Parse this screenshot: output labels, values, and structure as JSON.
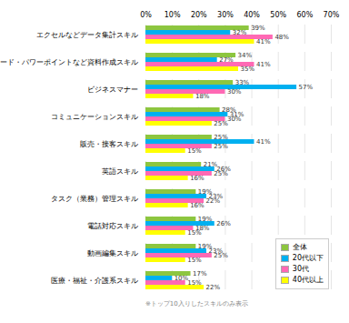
{
  "chart_data": {
    "type": "bar",
    "orientation": "horizontal",
    "categories": [
      "エクセルなどデータ集計スキル",
      "ワード・パワーポイントなど資料作成スキル",
      "ビジネスマナー",
      "コミュニケーションスキル",
      "販売・接客スキル",
      "英語スキル",
      "タスク（業務）管理スキル",
      "電話対応スキル",
      "動画編集スキル",
      "医療・福祉・介護系スキル"
    ],
    "series": [
      {
        "name": "全体",
        "color": "#8dc63f",
        "values": [
          39,
          34,
          33,
          28,
          25,
          21,
          19,
          19,
          19,
          17
        ],
        "value_labels": [
          "39%",
          "34%",
          "33%",
          "28%",
          "25%",
          "21%",
          "19%",
          "19%",
          "19%",
          "17%"
        ]
      },
      {
        "name": "20代以下",
        "color": "#00b0f0",
        "values": [
          32,
          27,
          57,
          31,
          41,
          26,
          23,
          26,
          23,
          10
        ],
        "value_labels": [
          "32%",
          "27%",
          "57%",
          "31%",
          "41%",
          "26%",
          "23%",
          "26%",
          "23%",
          "10%"
        ]
      },
      {
        "name": "30代",
        "color": "#ff69b4",
        "values": [
          48,
          41,
          30,
          30,
          25,
          25,
          22,
          18,
          25,
          15
        ],
        "value_labels": [
          "48%",
          "41%",
          "30%",
          "30%",
          "25%",
          "25%",
          "22%",
          "18%",
          "25%",
          "15%"
        ]
      },
      {
        "name": "40代以上",
        "color": "#ffff00",
        "values": [
          41,
          35,
          18,
          25,
          15,
          16,
          16,
          15,
          15,
          22
        ],
        "value_labels": [
          "41%",
          "35%",
          "18%",
          "25%",
          "15%",
          "16%",
          "16%",
          "15%",
          "15%",
          "22%"
        ]
      }
    ],
    "xlim": [
      0,
      70
    ],
    "xticks": [
      {
        "value": 0,
        "label": "0%"
      },
      {
        "value": 10,
        "label": "10%"
      },
      {
        "value": 20,
        "label": "20%"
      },
      {
        "value": 30,
        "label": "30%"
      },
      {
        "value": 40,
        "label": "40%"
      },
      {
        "value": 50,
        "label": "50%"
      },
      {
        "value": 60,
        "label": "60%"
      },
      {
        "value": 70,
        "label": "70%"
      }
    ],
    "grid": true,
    "data_labels": true,
    "legend": "lower right",
    "annotations": [
      "※トップ10入りしたスキルのみ表示"
    ]
  }
}
